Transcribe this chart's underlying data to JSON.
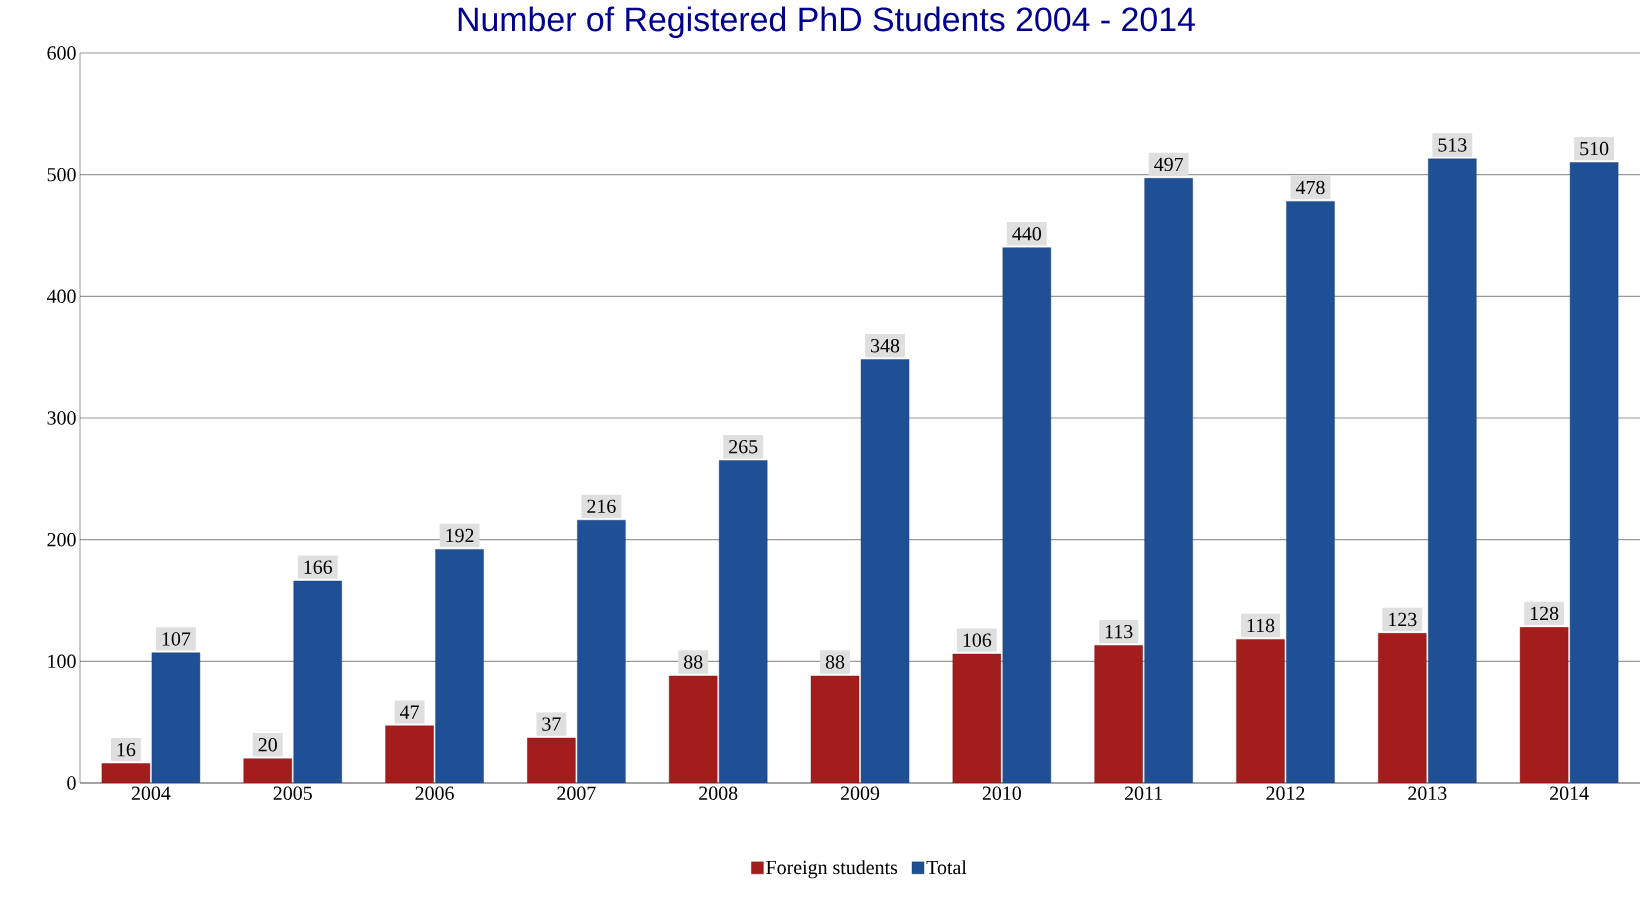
{
  "chart_data": {
    "type": "bar",
    "title": "Number of Registered PhD Students 2004 - 2014",
    "categories": [
      "2004",
      "2005",
      "2006",
      "2007",
      "2008",
      "2009",
      "2010",
      "2011",
      "2012",
      "2013",
      "2014"
    ],
    "series": [
      {
        "name": "Foreign students",
        "color": "#a31d1d",
        "values": [
          16,
          20,
          47,
          37,
          88,
          88,
          106,
          113,
          118,
          123,
          128
        ]
      },
      {
        "name": "Total",
        "color": "#1f4f95",
        "values": [
          107,
          166,
          192,
          216,
          265,
          348,
          440,
          497,
          478,
          513,
          510
        ]
      }
    ],
    "ylim": [
      0,
      600
    ],
    "yticks": [
      0,
      100,
      200,
      300,
      400,
      500,
      600
    ],
    "grid": "y",
    "legend": "bottom",
    "data_labels": true
  }
}
